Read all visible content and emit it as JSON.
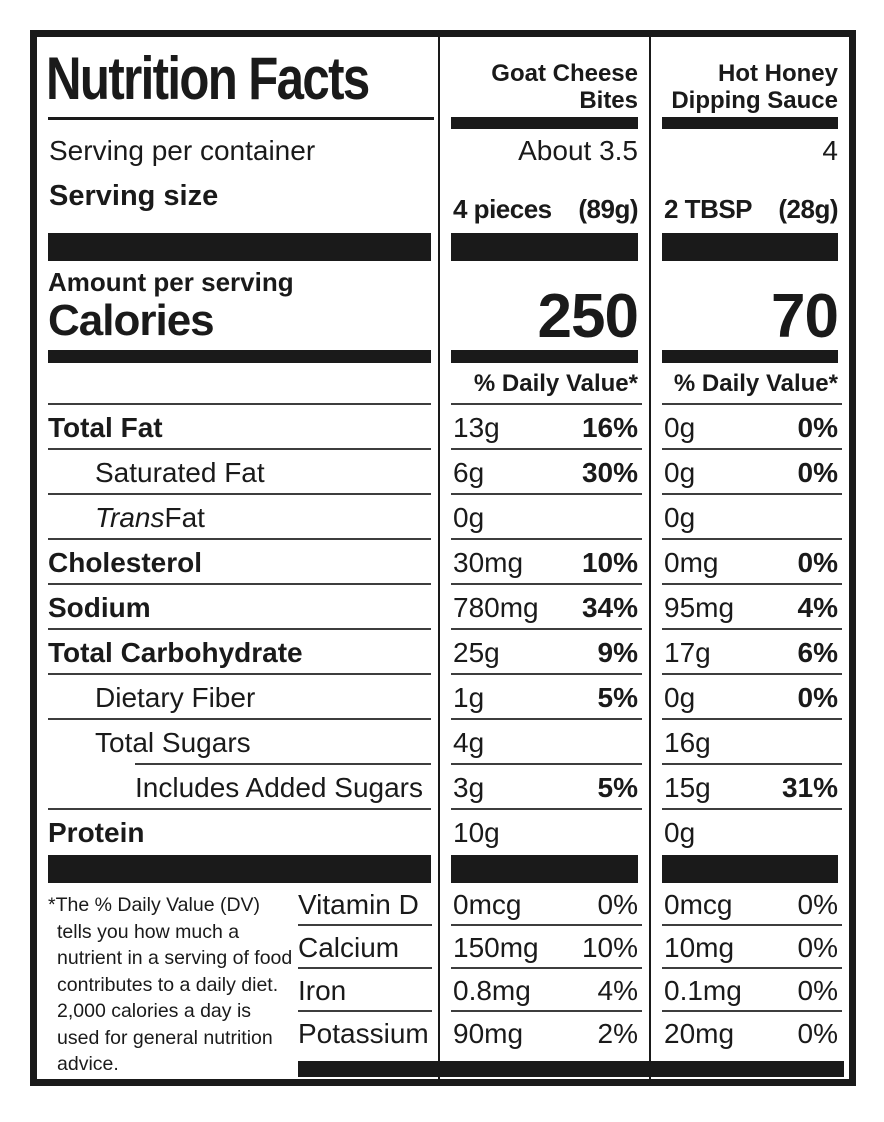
{
  "label": {
    "title": "Nutrition Facts",
    "headings": {
      "servings_per_container_label": "Serving per container",
      "serving_size_label": "Serving size",
      "amount_per_serving_label": "Amount per serving",
      "calories_label": "Calories",
      "daily_value_header": "% Daily Value*"
    },
    "products": [
      {
        "name_line1": "Goat Cheese",
        "name_line2": "Bites",
        "servings_per_container": "About 3.5",
        "serving_size": "4 pieces",
        "serving_weight": "(89g)",
        "calories": "250"
      },
      {
        "name_line1": "Hot Honey",
        "name_line2": "Dipping Sauce",
        "servings_per_container": "4",
        "serving_size": "2 TBSP",
        "serving_weight": "(28g)",
        "calories": "70"
      }
    ],
    "nutrients": [
      {
        "name": "Total Fat",
        "p1_amount": "13g",
        "p1_dv": "16%",
        "p2_amount": "0g",
        "p2_dv": "0%"
      },
      {
        "name": "Saturated Fat",
        "p1_amount": "6g",
        "p1_dv": "30%",
        "p2_amount": "0g",
        "p2_dv": "0%"
      },
      {
        "name_italic": "Trans",
        "name_rest": " Fat",
        "p1_amount": "0g",
        "p2_amount": "0g"
      },
      {
        "name": "Cholesterol",
        "p1_amount": "30mg",
        "p1_dv": "10%",
        "p2_amount": "0mg",
        "p2_dv": "0%"
      },
      {
        "name": "Sodium",
        "p1_amount": "780mg",
        "p1_dv": "34%",
        "p2_amount": "95mg",
        "p2_dv": "4%"
      },
      {
        "name": "Total Carbohydrate",
        "p1_amount": "25g",
        "p1_dv": "9%",
        "p2_amount": "17g",
        "p2_dv": "6%"
      },
      {
        "name": "Dietary Fiber",
        "p1_amount": "1g",
        "p1_dv": "5%",
        "p2_amount": "0g",
        "p2_dv": "0%"
      },
      {
        "name": "Total Sugars",
        "p1_amount": "4g",
        "p2_amount": "16g"
      },
      {
        "name": "Includes Added Sugars",
        "p1_amount": "3g",
        "p1_dv": "5%",
        "p2_amount": "15g",
        "p2_dv": "31%"
      },
      {
        "name": "Protein",
        "p1_amount": "10g",
        "p2_amount": "0g"
      }
    ],
    "vitamins": [
      {
        "name": "Vitamin D",
        "p1_amount": "0mcg",
        "p1_dv": "0%",
        "p2_amount": "0mcg",
        "p2_dv": "0%"
      },
      {
        "name": "Calcium",
        "p1_amount": "150mg",
        "p1_dv": "10%",
        "p2_amount": "10mg",
        "p2_dv": "0%"
      },
      {
        "name": "Iron",
        "p1_amount": "0.8mg",
        "p1_dv": "4%",
        "p2_amount": "0.1mg",
        "p2_dv": "0%"
      },
      {
        "name": "Potassium",
        "p1_amount": "90mg",
        "p1_dv": "2%",
        "p2_amount": "20mg",
        "p2_dv": "0%"
      }
    ],
    "footnote": "*The % Daily Value (DV) tells you how much a nutrient in a serving of food contributes to a daily diet. 2,000 calories a day is used for general nutrition advice.",
    "colors": {
      "ink": "#1a1a1a",
      "paper": "#ffffff"
    }
  }
}
